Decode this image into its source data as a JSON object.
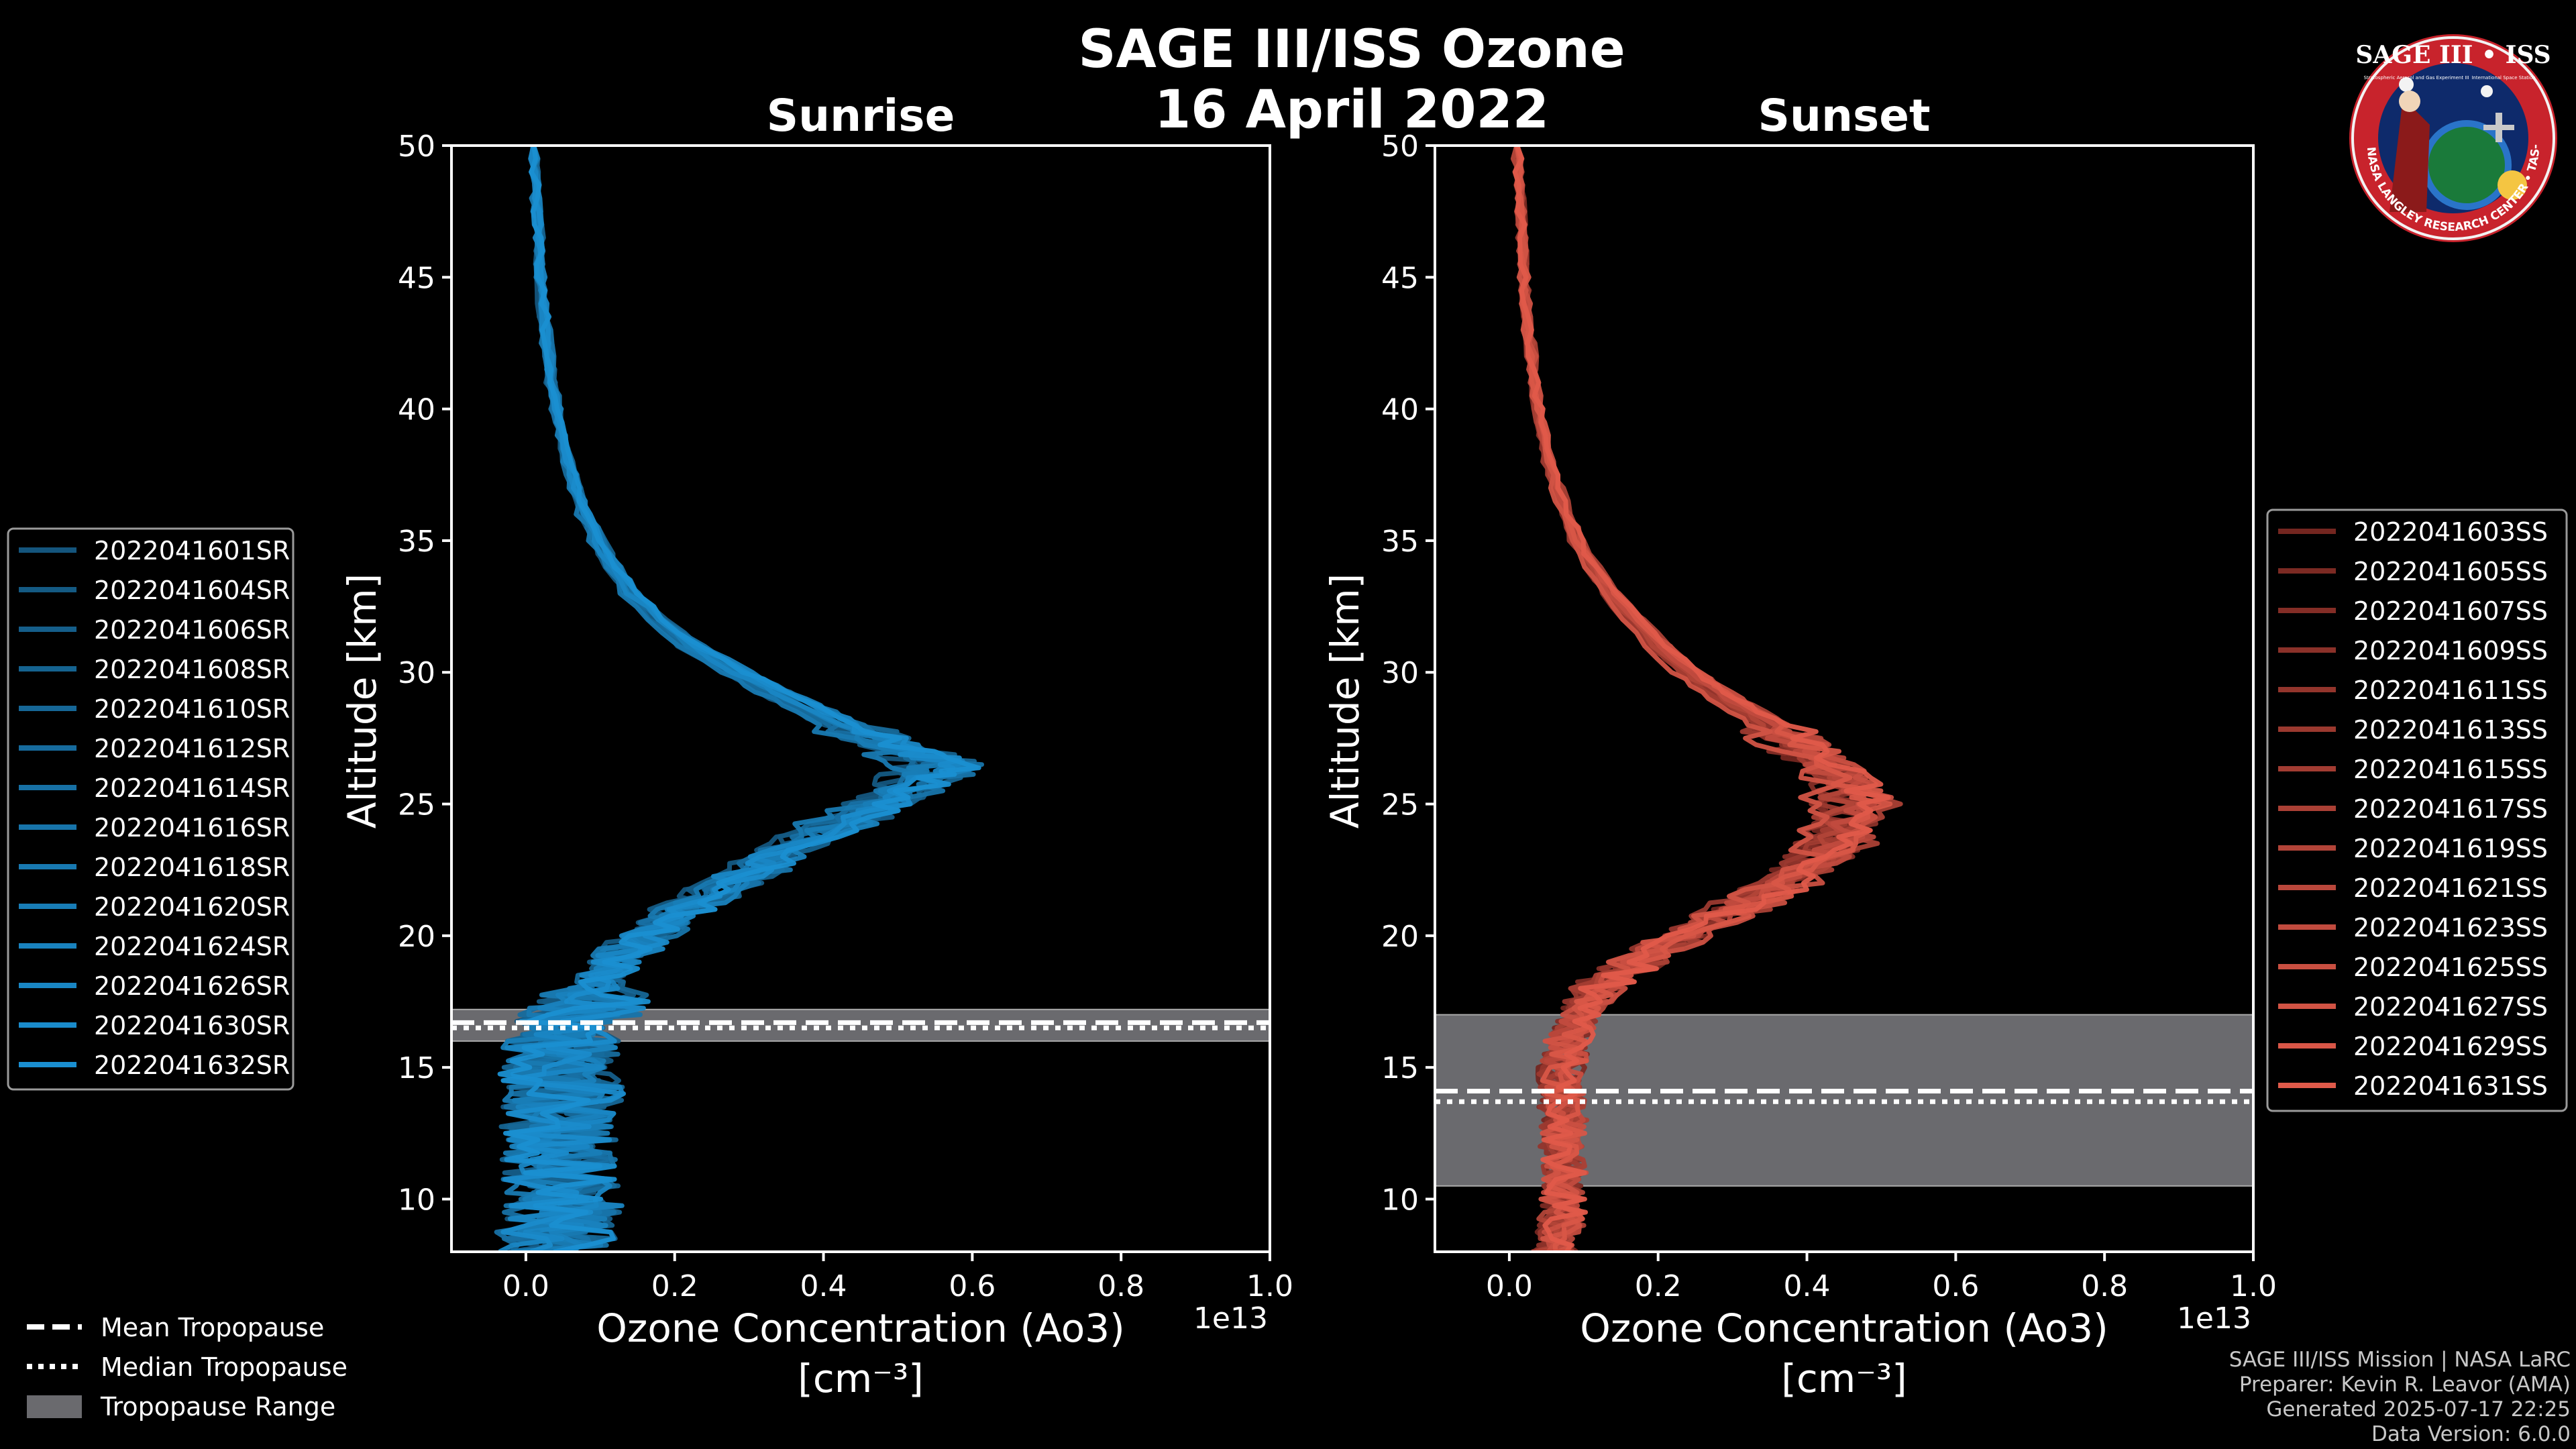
{
  "figure": {
    "title": "SAGE III/ISS Ozone",
    "date": "16 April 2022"
  },
  "colors": {
    "background": "#000000",
    "sunrise": "#1a8fd1",
    "sunset": "#e05a4a",
    "tropopause_band": "#6a6a6e",
    "axes": "#ffffff"
  },
  "chart_data": [
    {
      "type": "line",
      "title": "Sunrise",
      "xlabel": "Ozone Concentration (Ao3)",
      "xunits": "[cm⁻³]",
      "x_offset_text": "1e13",
      "ylabel": "Altitude [km]",
      "xlim": [
        -0.1,
        1.0
      ],
      "ylim": [
        8,
        50
      ],
      "xticks": [
        "0.0",
        "0.2",
        "0.4",
        "0.6",
        "0.8",
        "1.0"
      ],
      "yticks": [
        "10",
        "15",
        "20",
        "25",
        "30",
        "35",
        "40",
        "45",
        "50"
      ],
      "grid": false,
      "legend_position": "left",
      "tropopause": {
        "mean_km": 16.7,
        "median_km": 16.5,
        "range_km": [
          16.0,
          17.2
        ]
      },
      "typical_profile": {
        "altitude_km": [
          8,
          9,
          10,
          11,
          12,
          13,
          14,
          15,
          16,
          17,
          18,
          19,
          20,
          21,
          22,
          23,
          24,
          25,
          26,
          26.5,
          27,
          28,
          29,
          30,
          31,
          32,
          33,
          34,
          35,
          36,
          37,
          38,
          39,
          40,
          41,
          42,
          43,
          44,
          45,
          46,
          47,
          48,
          49,
          50
        ],
        "ozone_1e13": [
          0.04,
          0.04,
          0.05,
          0.04,
          0.05,
          0.04,
          0.05,
          0.04,
          0.05,
          0.07,
          0.09,
          0.12,
          0.16,
          0.21,
          0.27,
          0.33,
          0.4,
          0.47,
          0.53,
          0.55,
          0.5,
          0.42,
          0.35,
          0.28,
          0.22,
          0.175,
          0.14,
          0.115,
          0.095,
          0.078,
          0.065,
          0.055,
          0.047,
          0.04,
          0.034,
          0.03,
          0.026,
          0.022,
          0.02,
          0.018,
          0.016,
          0.014,
          0.012,
          0.01
        ]
      },
      "series": [
        {
          "name": "2022041601SR"
        },
        {
          "name": "2022041604SR"
        },
        {
          "name": "2022041606SR"
        },
        {
          "name": "2022041608SR"
        },
        {
          "name": "2022041610SR"
        },
        {
          "name": "2022041612SR"
        },
        {
          "name": "2022041614SR"
        },
        {
          "name": "2022041616SR"
        },
        {
          "name": "2022041618SR"
        },
        {
          "name": "2022041620SR"
        },
        {
          "name": "2022041624SR"
        },
        {
          "name": "2022041626SR"
        },
        {
          "name": "2022041630SR"
        },
        {
          "name": "2022041632SR"
        }
      ]
    },
    {
      "type": "line",
      "title": "Sunset",
      "xlabel": "Ozone Concentration (Ao3)",
      "xunits": "[cm⁻³]",
      "x_offset_text": "1e13",
      "ylabel": "Altitude [km]",
      "xlim": [
        -0.1,
        1.0
      ],
      "ylim": [
        8,
        50
      ],
      "xticks": [
        "0.0",
        "0.2",
        "0.4",
        "0.6",
        "0.8",
        "1.0"
      ],
      "yticks": [
        "10",
        "15",
        "20",
        "25",
        "30",
        "35",
        "40",
        "45",
        "50"
      ],
      "grid": false,
      "legend_position": "right",
      "tropopause": {
        "mean_km": 14.1,
        "median_km": 13.7,
        "range_km": [
          10.5,
          17.0
        ]
      },
      "typical_profile": {
        "altitude_km": [
          8,
          9,
          10,
          11,
          12,
          13,
          14,
          15,
          16,
          17,
          18,
          19,
          20,
          21,
          22,
          23,
          24,
          25,
          26,
          27,
          28,
          29,
          30,
          31,
          32,
          33,
          34,
          35,
          36,
          37,
          38,
          39,
          40,
          41,
          42,
          43,
          44,
          45,
          46,
          47,
          48,
          49,
          50
        ],
        "ozone_1e13": [
          0.06,
          0.07,
          0.07,
          0.07,
          0.07,
          0.07,
          0.07,
          0.07,
          0.08,
          0.09,
          0.12,
          0.17,
          0.23,
          0.3,
          0.37,
          0.42,
          0.45,
          0.46,
          0.44,
          0.4,
          0.35,
          0.29,
          0.24,
          0.2,
          0.165,
          0.135,
          0.11,
          0.09,
          0.075,
          0.063,
          0.053,
          0.045,
          0.038,
          0.033,
          0.029,
          0.025,
          0.022,
          0.02,
          0.018,
          0.016,
          0.014,
          0.012,
          0.01
        ]
      },
      "series": [
        {
          "name": "2022041603SS"
        },
        {
          "name": "2022041605SS"
        },
        {
          "name": "2022041607SS"
        },
        {
          "name": "2022041609SS"
        },
        {
          "name": "2022041611SS"
        },
        {
          "name": "2022041613SS"
        },
        {
          "name": "2022041615SS"
        },
        {
          "name": "2022041617SS"
        },
        {
          "name": "2022041619SS"
        },
        {
          "name": "2022041621SS"
        },
        {
          "name": "2022041623SS"
        },
        {
          "name": "2022041625SS"
        },
        {
          "name": "2022041627SS"
        },
        {
          "name": "2022041629SS"
        },
        {
          "name": "2022041631SS"
        }
      ]
    }
  ],
  "tropopause_legend": {
    "mean": "Mean Tropopause",
    "median": "Median Tropopause",
    "range": "Tropopause Range"
  },
  "credits": {
    "line1": "SAGE III/ISS Mission | NASA LaRC",
    "line2": "Preparer: Kevin R. Leavor (AMA)",
    "line3": "Generated 2025-07-17 22:25",
    "line4": "Data Version: 6.0.0"
  },
  "badge": {
    "title": "SAGE III • ISS",
    "ring_text": "BALL • NASA LANGLEY RESEARCH CENTER • TAS-I • ESA",
    "small_left": "Stratospheric Aerosol and Gas Experiment III",
    "small_right": "International Space Station"
  }
}
